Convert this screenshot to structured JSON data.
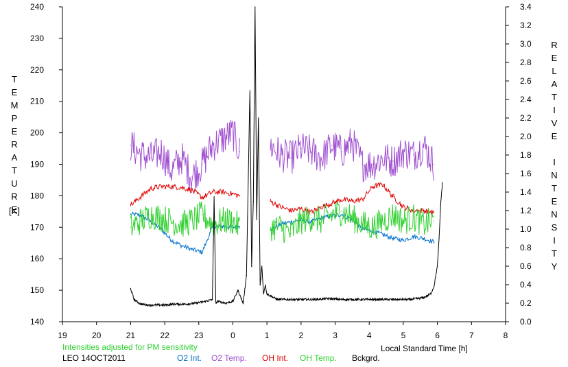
{
  "chart_data": {
    "type": "line",
    "left_axis_label": "TEMPERATURE",
    "left_axis_unit": "[K]",
    "right_axis_label": "RELATIVE INTENSITY",
    "xlabel": "Local Standard Time [h]",
    "note": "Intensities adjusted for PM sensitivity",
    "station_date": "LEO 14OCT2011",
    "x_ticks": [
      "19",
      "20",
      "21",
      "22",
      "23",
      "0",
      "1",
      "2",
      "3",
      "4",
      "5",
      "6",
      "7",
      "8"
    ],
    "x_range_hours": [
      19,
      32
    ],
    "y_left_ticks": [
      "140",
      "150",
      "160",
      "170",
      "180",
      "190",
      "200",
      "210",
      "220",
      "230",
      "240"
    ],
    "y_left_range": [
      140,
      240
    ],
    "y_right_ticks": [
      "0.0",
      "0.2",
      "0.4",
      "0.6",
      "0.8",
      "1.0",
      "1.2",
      "1.4",
      "1.6",
      "1.8",
      "2.0",
      "2.2",
      "2.4",
      "2.6",
      "2.8",
      "3.0",
      "3.2",
      "3.4"
    ],
    "y_right_range": [
      0.0,
      3.4
    ],
    "gap_hours": [
      24.2,
      25.1
    ],
    "series": [
      {
        "name": "O2 Int.",
        "axis": "right",
        "color": "#0070d0",
        "x": [
          21.0,
          21.3,
          21.6,
          21.9,
          22.2,
          22.5,
          22.8,
          23.1,
          23.4,
          23.7,
          24.0,
          24.2,
          25.1,
          25.4,
          25.7,
          26.0,
          26.3,
          26.6,
          26.9,
          27.2,
          27.5,
          27.8,
          28.1,
          28.4,
          28.7,
          29.0,
          29.3,
          29.6,
          29.9
        ],
        "values": [
          1.16,
          1.15,
          1.08,
          1.0,
          0.88,
          0.82,
          0.78,
          0.75,
          1.02,
          1.03,
          1.02,
          1.03,
          1.0,
          1.05,
          1.08,
          1.1,
          1.08,
          1.12,
          1.14,
          1.16,
          1.1,
          1.0,
          0.98,
          0.94,
          0.9,
          0.88,
          0.92,
          0.9,
          0.86
        ],
        "noise": 0.025
      },
      {
        "name": "O2 Temp.",
        "axis": "left",
        "color": "#a050d0",
        "x": [
          21.0,
          21.3,
          21.6,
          21.9,
          22.2,
          22.5,
          22.8,
          23.1,
          23.4,
          23.7,
          24.0,
          24.2,
          25.1,
          25.4,
          25.7,
          26.0,
          26.3,
          26.6,
          26.9,
          27.2,
          27.5,
          27.8,
          28.1,
          28.4,
          28.7,
          29.0,
          29.3,
          29.6,
          29.9
        ],
        "values": [
          196,
          193,
          192,
          194,
          188,
          192,
          186,
          190,
          196,
          198,
          200,
          194,
          196,
          193,
          192,
          195,
          194,
          192,
          196,
          194,
          197,
          190,
          190,
          192,
          191,
          194,
          193,
          196,
          190
        ],
        "noise": 5.5
      },
      {
        "name": "OH Int.",
        "axis": "right",
        "color": "#e00000",
        "x": [
          21.0,
          21.3,
          21.6,
          21.9,
          22.2,
          22.5,
          22.8,
          23.1,
          23.4,
          23.7,
          24.0,
          24.2,
          25.1,
          25.4,
          25.7,
          26.0,
          26.3,
          26.6,
          26.9,
          27.2,
          27.5,
          27.8,
          28.1,
          28.4,
          28.7,
          29.0,
          29.3,
          29.6,
          29.9
        ],
        "values": [
          1.26,
          1.35,
          1.44,
          1.46,
          1.46,
          1.45,
          1.42,
          1.34,
          1.4,
          1.4,
          1.38,
          1.36,
          1.3,
          1.24,
          1.2,
          1.22,
          1.18,
          1.24,
          1.28,
          1.32,
          1.3,
          1.32,
          1.46,
          1.48,
          1.35,
          1.24,
          1.2,
          1.2,
          1.18
        ],
        "noise": 0.03
      },
      {
        "name": "OH Temp.",
        "axis": "left",
        "color": "#30d030",
        "x": [
          21.0,
          21.3,
          21.6,
          21.9,
          22.2,
          22.5,
          22.8,
          23.1,
          23.4,
          23.7,
          24.0,
          24.2,
          25.1,
          25.4,
          25.7,
          26.0,
          26.3,
          26.6,
          26.9,
          27.2,
          27.5,
          27.8,
          28.1,
          28.4,
          28.7,
          29.0,
          29.3,
          29.6,
          29.9
        ],
        "values": [
          170,
          172,
          174,
          173,
          172,
          171,
          172,
          174,
          171,
          172,
          172,
          170,
          170,
          170,
          168,
          172,
          173,
          172,
          174,
          175,
          173,
          171,
          170,
          172,
          174,
          172,
          173,
          171,
          172
        ],
        "noise": 4.5
      },
      {
        "name": "Bckgrd.",
        "axis": "right",
        "color": "#000000",
        "x": [
          21.0,
          21.1,
          21.3,
          21.5,
          21.8,
          22.0,
          22.3,
          22.6,
          22.9,
          23.2,
          23.4,
          23.45,
          23.5,
          23.55,
          23.8,
          24.0,
          24.15,
          24.3,
          24.4,
          24.5,
          24.55,
          24.6,
          24.65,
          24.7,
          24.75,
          24.8,
          24.85,
          24.9,
          24.95,
          25.0,
          25.1,
          25.3,
          25.6,
          26.0,
          26.4,
          26.8,
          27.2,
          27.6,
          28.0,
          28.4,
          28.8,
          29.2,
          29.6,
          29.8,
          29.9,
          30.0,
          30.05,
          30.1,
          30.15
        ],
        "values": [
          0.36,
          0.24,
          0.19,
          0.18,
          0.18,
          0.18,
          0.19,
          0.19,
          0.2,
          0.22,
          0.24,
          1.35,
          0.2,
          0.22,
          0.2,
          0.22,
          0.34,
          0.2,
          0.5,
          2.5,
          0.6,
          1.3,
          3.4,
          1.1,
          2.2,
          0.4,
          0.6,
          0.3,
          0.4,
          0.3,
          0.28,
          0.24,
          0.24,
          0.24,
          0.24,
          0.25,
          0.24,
          0.24,
          0.24,
          0.24,
          0.24,
          0.24,
          0.26,
          0.3,
          0.38,
          0.6,
          0.9,
          1.3,
          1.5
        ],
        "noise": 0.012
      }
    ],
    "legend_placement": "bottom"
  }
}
